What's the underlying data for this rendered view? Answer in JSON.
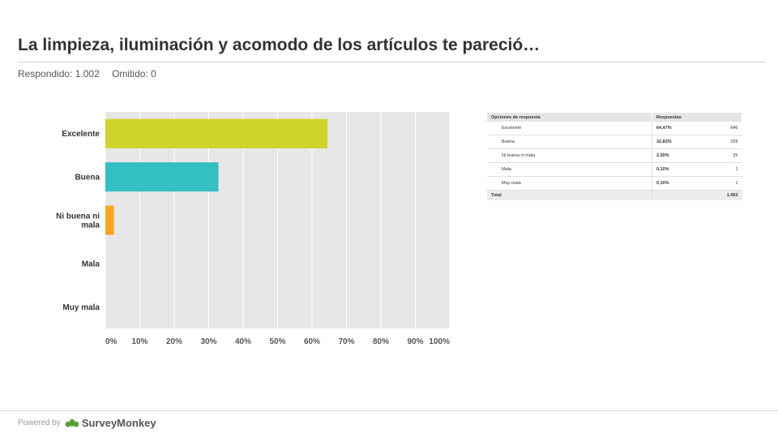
{
  "header": {
    "title": "La limpieza, iluminación y acomodo de los artículos te pareció…",
    "answered": "Respondido: 1.002",
    "skipped": "Omitido: 0"
  },
  "chart_data": {
    "type": "bar",
    "orientation": "horizontal",
    "categories": [
      "Excelente",
      "Buena",
      "Ni buena ni mala",
      "Mala",
      "Muy mala"
    ],
    "values": [
      64.47,
      32.83,
      2.5,
      0.1,
      0.1
    ],
    "colors": [
      "#cdd42b",
      "#34bfc1",
      "#f5a623",
      "#7a7ab8",
      "#e6e6e6"
    ],
    "xlim": [
      0,
      100
    ],
    "x_ticks": [
      "0%",
      "10%",
      "20%",
      "30%",
      "40%",
      "50%",
      "60%",
      "70%",
      "80%",
      "90%",
      "100%"
    ],
    "plot_background": "#e7e7e7",
    "grid": true
  },
  "table": {
    "headers": [
      "Opciones de respuesta",
      "Respuestas"
    ],
    "rows": [
      {
        "option": "Excelente",
        "percent": "64,47%",
        "count": "646"
      },
      {
        "option": "Buena",
        "percent": "32,83%",
        "count": "329"
      },
      {
        "option": "Ni buena ni mala",
        "percent": "2,50%",
        "count": "25"
      },
      {
        "option": "Mala",
        "percent": "0,10%",
        "count": "1"
      },
      {
        "option": "Muy mala",
        "percent": "0,10%",
        "count": "1"
      }
    ],
    "total_label": "Total",
    "total_value": "1.002"
  },
  "footer": {
    "powered": "Powered by",
    "brand": "SurveyMonkey",
    "logo_icon": "surveymonkey-logo-icon",
    "logo_color": "#5a9e3c"
  }
}
